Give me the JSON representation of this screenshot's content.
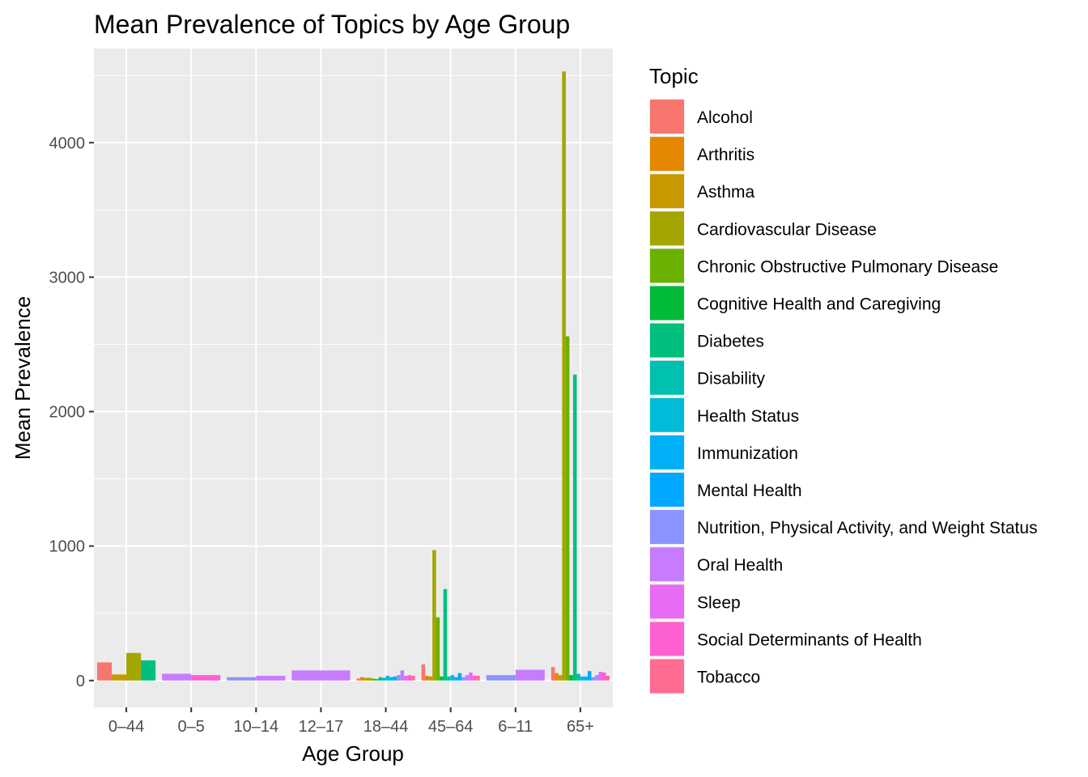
{
  "chart_data": {
    "type": "bar",
    "title": "Mean Prevalence of Topics by Age Group",
    "xlabel": "Age Group",
    "ylabel": "Mean Prevalence",
    "ylim": [
      -200,
      4700
    ],
    "yticks": [
      0,
      1000,
      2000,
      3000,
      4000
    ],
    "grid": true,
    "legend_title": "Topic",
    "legend_position": "right",
    "categories": [
      "0–44",
      "0–5",
      "10–14",
      "12–17",
      "18–44",
      "45–64",
      "6–11",
      "65+"
    ],
    "topics": [
      {
        "name": "Alcohol",
        "color": "#F8766D"
      },
      {
        "name": "Arthritis",
        "color": "#E58700"
      },
      {
        "name": "Asthma",
        "color": "#C99800"
      },
      {
        "name": "Cardiovascular Disease",
        "color": "#A3A500"
      },
      {
        "name": "Chronic Obstructive Pulmonary Disease",
        "color": "#6BB100"
      },
      {
        "name": "Cognitive Health and Caregiving",
        "color": "#00BA38"
      },
      {
        "name": "Diabetes",
        "color": "#00BF7D"
      },
      {
        "name": "Disability",
        "color": "#00C0AF"
      },
      {
        "name": "Health Status",
        "color": "#00BCD8"
      },
      {
        "name": "Immunization",
        "color": "#00B0F6"
      },
      {
        "name": "Mental Health",
        "color": "#00A9FF"
      },
      {
        "name": "Nutrition, Physical Activity, and Weight Status",
        "color": "#8B93FF"
      },
      {
        "name": "Oral Health",
        "color": "#C77CFF"
      },
      {
        "name": "Sleep",
        "color": "#E76BF3"
      },
      {
        "name": "Social Determinants of Health",
        "color": "#FD61D1"
      },
      {
        "name": "Tobacco",
        "color": "#FF6C91"
      }
    ],
    "groups": [
      {
        "category": "0–44",
        "bars": [
          {
            "topic": "Alcohol",
            "value": 135
          },
          {
            "topic": "Asthma",
            "value": 45
          },
          {
            "topic": "Cardiovascular Disease",
            "value": 205
          },
          {
            "topic": "Diabetes",
            "value": 150
          }
        ]
      },
      {
        "category": "0–5",
        "bars": [
          {
            "topic": "Oral Health",
            "value": 50
          },
          {
            "topic": "Social Determinants of Health",
            "value": 40
          }
        ]
      },
      {
        "category": "10–14",
        "bars": [
          {
            "topic": "Nutrition, Physical Activity, and Weight Status",
            "value": 25
          },
          {
            "topic": "Oral Health",
            "value": 35
          }
        ]
      },
      {
        "category": "12–17",
        "bars": [
          {
            "topic": "Oral Health",
            "value": 75
          },
          {
            "topic": "Oral Health",
            "value": 75
          }
        ]
      },
      {
        "category": "18–44",
        "bars": [
          {
            "topic": "Alcohol",
            "value": 15
          },
          {
            "topic": "Arthritis",
            "value": 25
          },
          {
            "topic": "Asthma",
            "value": 20
          },
          {
            "topic": "Cardiovascular Disease",
            "value": 20
          },
          {
            "topic": "Chronic Obstructive Pulmonary Disease",
            "value": 15
          },
          {
            "topic": "Cognitive Health and Caregiving",
            "value": 10
          },
          {
            "topic": "Diabetes",
            "value": 25
          },
          {
            "topic": "Disability",
            "value": 20
          },
          {
            "topic": "Health Status",
            "value": 35
          },
          {
            "topic": "Immunization",
            "value": 25
          },
          {
            "topic": "Mental Health",
            "value": 30
          },
          {
            "topic": "Nutrition, Physical Activity, and Weight Status",
            "value": 40
          },
          {
            "topic": "Oral Health",
            "value": 75
          },
          {
            "topic": "Sleep",
            "value": 35
          },
          {
            "topic": "Social Determinants of Health",
            "value": 40
          },
          {
            "topic": "Tobacco",
            "value": 35
          }
        ]
      },
      {
        "category": "45–64",
        "bars": [
          {
            "topic": "Alcohol",
            "value": 120
          },
          {
            "topic": "Arthritis",
            "value": 35
          },
          {
            "topic": "Asthma",
            "value": 30
          },
          {
            "topic": "Cardiovascular Disease",
            "value": 970
          },
          {
            "topic": "Chronic Obstructive Pulmonary Disease",
            "value": 470
          },
          {
            "topic": "Cognitive Health and Caregiving",
            "value": 30
          },
          {
            "topic": "Diabetes",
            "value": 680
          },
          {
            "topic": "Disability",
            "value": 30
          },
          {
            "topic": "Health Status",
            "value": 40
          },
          {
            "topic": "Immunization",
            "value": 25
          },
          {
            "topic": "Mental Health",
            "value": 55
          },
          {
            "topic": "Nutrition, Physical Activity, and Weight Status",
            "value": 25
          },
          {
            "topic": "Oral Health",
            "value": 40
          },
          {
            "topic": "Sleep",
            "value": 60
          },
          {
            "topic": "Social Determinants of Health",
            "value": 35
          },
          {
            "topic": "Tobacco",
            "value": 35
          }
        ]
      },
      {
        "category": "6–11",
        "bars": [
          {
            "topic": "Nutrition, Physical Activity, and Weight Status",
            "value": 40
          },
          {
            "topic": "Oral Health",
            "value": 80
          }
        ]
      },
      {
        "category": "65+",
        "bars": [
          {
            "topic": "Alcohol",
            "value": 100
          },
          {
            "topic": "Arthritis",
            "value": 55
          },
          {
            "topic": "Asthma",
            "value": 40
          },
          {
            "topic": "Cardiovascular Disease",
            "value": 4530
          },
          {
            "topic": "Chronic Obstructive Pulmonary Disease",
            "value": 2560
          },
          {
            "topic": "Cognitive Health and Caregiving",
            "value": 40
          },
          {
            "topic": "Diabetes",
            "value": 2275
          },
          {
            "topic": "Disability",
            "value": 50
          },
          {
            "topic": "Health Status",
            "value": 30
          },
          {
            "topic": "Immunization",
            "value": 30
          },
          {
            "topic": "Mental Health",
            "value": 70
          },
          {
            "topic": "Nutrition, Physical Activity, and Weight Status",
            "value": 25
          },
          {
            "topic": "Oral Health",
            "value": 40
          },
          {
            "topic": "Sleep",
            "value": 65
          },
          {
            "topic": "Social Determinants of Health",
            "value": 60
          },
          {
            "topic": "Tobacco",
            "value": 35
          }
        ]
      }
    ]
  }
}
